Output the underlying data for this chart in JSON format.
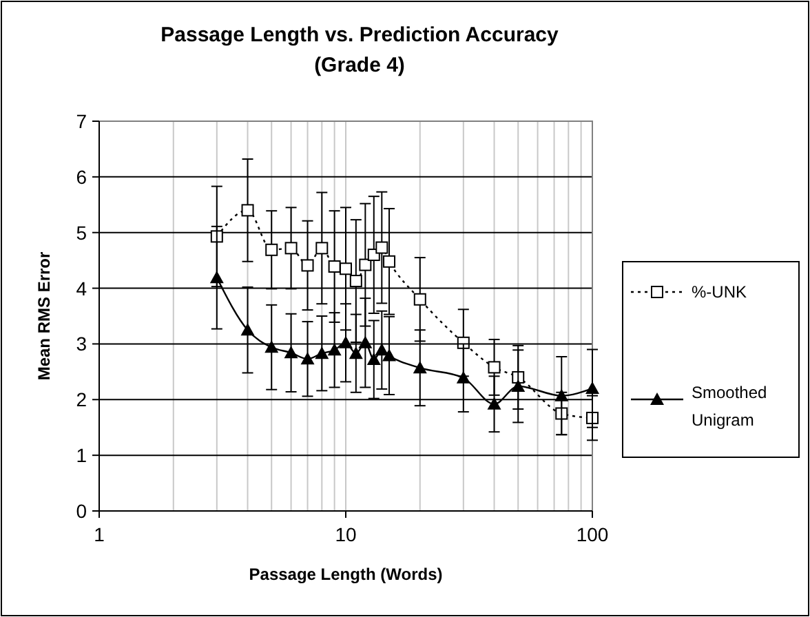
{
  "chart_data": {
    "type": "line",
    "title": "Passage Length vs. Prediction Accuracy",
    "subtitle": "(Grade 4)",
    "xlabel": "Passage Length (Words)",
    "ylabel": "Mean RMS Error",
    "x": [
      3,
      4,
      5,
      6,
      7,
      8,
      9,
      10,
      11,
      12,
      13,
      14,
      15,
      20,
      30,
      40,
      50,
      75,
      100
    ],
    "series": [
      {
        "name": "%-UNK",
        "color": "#000000",
        "marker": "square",
        "line_style": "dotted",
        "values": [
          4.93,
          5.4,
          4.69,
          4.72,
          4.41,
          4.72,
          4.39,
          4.35,
          4.13,
          4.42,
          4.6,
          4.73,
          4.48,
          3.8,
          3.02,
          2.58,
          2.4,
          1.75,
          1.67
        ],
        "errors": [
          0.9,
          0.92,
          0.7,
          0.73,
          0.8,
          1.0,
          1.0,
          1.1,
          1.1,
          1.1,
          1.05,
          1.0,
          0.95,
          0.75,
          0.6,
          0.5,
          0.57,
          0.38,
          0.4
        ]
      },
      {
        "name": "Smoothed Unigram",
        "color": "#000000",
        "marker": "triangle",
        "line_style": "solid",
        "values": [
          4.19,
          3.25,
          2.94,
          2.84,
          2.73,
          2.83,
          2.89,
          3.02,
          2.83,
          3.02,
          2.72,
          2.89,
          2.79,
          2.57,
          2.39,
          1.92,
          2.24,
          2.07,
          2.2
        ],
        "errors": [
          0.92,
          0.77,
          0.76,
          0.7,
          0.67,
          0.67,
          0.67,
          0.7,
          0.7,
          0.8,
          0.7,
          0.7,
          0.7,
          0.68,
          0.61,
          0.5,
          0.65,
          0.7,
          0.7
        ]
      }
    ],
    "log": "x",
    "xlim": [
      1,
      100
    ],
    "xticks": [
      1,
      {
        "value": 2,
        "label": null
      },
      {
        "value": 3,
        "label": null
      },
      {
        "value": 4,
        "label": null
      },
      {
        "value": 5,
        "label": null
      },
      {
        "value": 6,
        "label": null
      },
      {
        "value": 7,
        "label": null
      },
      {
        "value": 8,
        "label": null
      },
      {
        "value": 9,
        "label": null
      },
      10,
      {
        "value": 20,
        "label": null
      },
      {
        "value": 30,
        "label": null
      },
      {
        "value": 40,
        "label": null
      },
      {
        "value": 50,
        "label": null
      },
      {
        "value": 60,
        "label": null
      },
      {
        "value": 70,
        "label": null
      },
      {
        "value": 80,
        "label": null
      },
      {
        "value": 90,
        "label": null
      },
      100
    ],
    "ylim": [
      0,
      7
    ],
    "yticks": [
      0,
      1,
      2,
      3,
      4,
      5,
      6,
      7
    ],
    "grid": true,
    "legend": "right"
  }
}
